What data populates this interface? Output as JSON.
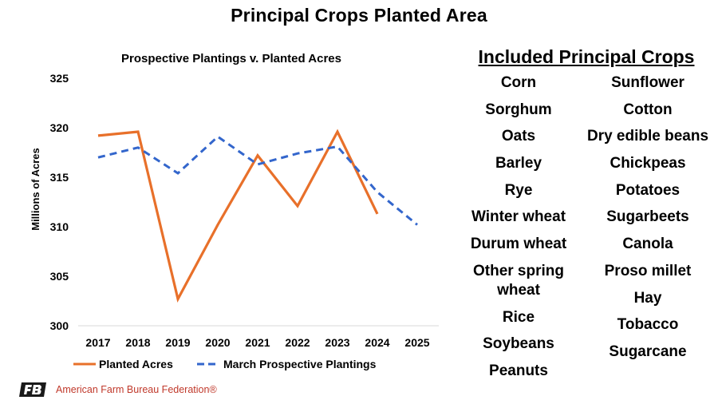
{
  "title": "Principal Crops Planted Area",
  "chart_data": {
    "type": "line",
    "title": "Prospective Plantings v. Planted Acres",
    "xlabel": "",
    "ylabel": "Millions of Acres",
    "x": [
      "2017",
      "2018",
      "2019",
      "2020",
      "2021",
      "2022",
      "2023",
      "2024",
      "2025"
    ],
    "ylim": [
      300,
      325
    ],
    "yticks": [
      300,
      305,
      310,
      315,
      320,
      325
    ],
    "grid": false,
    "legend_position": "bottom",
    "series": [
      {
        "name": "Planted Acres",
        "style": "solid",
        "color": "#e8702a",
        "values": [
          319.2,
          319.6,
          302.7,
          310.2,
          317.2,
          312.1,
          319.6,
          311.3,
          null
        ]
      },
      {
        "name": "March Prospective Plantings",
        "style": "dashed",
        "color": "#3366cc",
        "values": [
          317.0,
          318.0,
          315.4,
          319.1,
          316.3,
          317.4,
          318.1,
          313.5,
          310.2
        ]
      }
    ]
  },
  "crops": {
    "heading": "Included Principal Crops",
    "left": [
      "Corn",
      "Sorghum",
      "Oats",
      "Barley",
      "Rye",
      "Winter wheat",
      "Durum wheat",
      "Other spring wheat",
      "Rice",
      "Soybeans",
      "Peanuts"
    ],
    "right": [
      "Sunflower",
      "Cotton",
      "Dry edible beans",
      "Chickpeas",
      "Potatoes",
      "Sugarbeets",
      "Canola",
      "Proso millet",
      "Hay",
      "Tobacco",
      "Sugarcane"
    ]
  },
  "footer": {
    "org": "American Farm Bureau Federation®",
    "logo_icon": "fb-logo-icon"
  }
}
